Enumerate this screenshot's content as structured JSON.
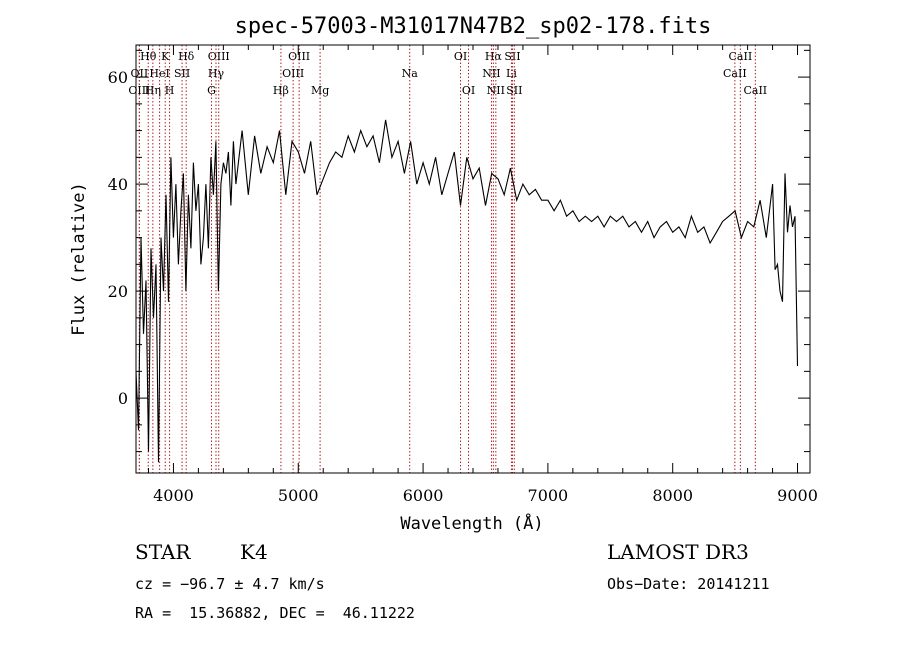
{
  "chart_data": {
    "type": "line",
    "title": "spec-57003-M31017N47B2_sp02-178.fits",
    "xlabel": "Wavelength (Å)",
    "ylabel": "Flux (relative)",
    "xlim": [
      3700,
      9100
    ],
    "ylim": [
      -14,
      66
    ],
    "xticks": [
      4000,
      5000,
      6000,
      7000,
      8000,
      9000
    ],
    "yticks": [
      0,
      20,
      40,
      60
    ],
    "series": [
      {
        "name": "flux",
        "x": [
          3700,
          3720,
          3740,
          3760,
          3780,
          3800,
          3820,
          3840,
          3860,
          3880,
          3900,
          3920,
          3940,
          3960,
          3980,
          4000,
          4020,
          4040,
          4060,
          4080,
          4100,
          4120,
          4140,
          4160,
          4180,
          4200,
          4220,
          4240,
          4260,
          4280,
          4300,
          4320,
          4340,
          4360,
          4380,
          4400,
          4420,
          4440,
          4460,
          4480,
          4500,
          4550,
          4600,
          4650,
          4700,
          4750,
          4800,
          4850,
          4900,
          4950,
          5000,
          5050,
          5100,
          5150,
          5200,
          5250,
          5300,
          5350,
          5400,
          5450,
          5500,
          5550,
          5600,
          5650,
          5700,
          5750,
          5800,
          5850,
          5900,
          5950,
          6000,
          6050,
          6100,
          6150,
          6200,
          6250,
          6300,
          6350,
          6400,
          6450,
          6500,
          6550,
          6600,
          6650,
          6700,
          6750,
          6800,
          6850,
          6900,
          6950,
          7000,
          7050,
          7100,
          7150,
          7200,
          7250,
          7300,
          7350,
          7400,
          7450,
          7500,
          7550,
          7600,
          7650,
          7700,
          7750,
          7800,
          7850,
          7900,
          7950,
          8000,
          8050,
          8100,
          8150,
          8200,
          8250,
          8300,
          8350,
          8400,
          8450,
          8500,
          8550,
          8600,
          8650,
          8700,
          8750,
          8800,
          8820,
          8840,
          8860,
          8880,
          8900,
          8920,
          8940,
          8960,
          8980,
          9000
        ],
        "y": [
          5,
          -6,
          30,
          12,
          22,
          -10,
          28,
          15,
          25,
          -12,
          30,
          20,
          38,
          18,
          45,
          30,
          40,
          25,
          35,
          42,
          20,
          38,
          28,
          44,
          35,
          40,
          25,
          30,
          40,
          28,
          45,
          38,
          48,
          20,
          40,
          44,
          42,
          46,
          36,
          48,
          40,
          50,
          38,
          49,
          42,
          47,
          44,
          50,
          38,
          48,
          46,
          42,
          48,
          38,
          41,
          44,
          46,
          45,
          49,
          46,
          50,
          47,
          49,
          44,
          52,
          45,
          48,
          42,
          48,
          40,
          44,
          40,
          45,
          38,
          42,
          46,
          36,
          45,
          41,
          43,
          36,
          42,
          41,
          38,
          43,
          37,
          40,
          38,
          39,
          37,
          37,
          35,
          37,
          34,
          35,
          33,
          34,
          33,
          34,
          32,
          34,
          33,
          34,
          32,
          33,
          31,
          33,
          30,
          32,
          33,
          31,
          32,
          30,
          34,
          31,
          32,
          29,
          31,
          33,
          34,
          35,
          30,
          33,
          32,
          37,
          30,
          40,
          24,
          25,
          20,
          18,
          42,
          31,
          36,
          32,
          34,
          6
        ]
      }
    ],
    "lines": [
      {
        "label": "Hθ",
        "wave": 3798,
        "row": 0
      },
      {
        "label": "OII",
        "wave": 3727,
        "row": 1
      },
      {
        "label": "OIII",
        "wave": 3727,
        "row": 2
      },
      {
        "label": "K",
        "wave": 3934,
        "row": 0
      },
      {
        "label": "HeI",
        "wave": 3889,
        "row": 1
      },
      {
        "label": "Hη",
        "wave": 3835,
        "row": 2
      },
      {
        "label": "SII",
        "wave": 4069,
        "row": 1
      },
      {
        "label": "H",
        "wave": 3969,
        "row": 2
      },
      {
        "label": "Hδ",
        "wave": 4102,
        "row": 0
      },
      {
        "label": "OIII",
        "wave": 4363,
        "row": 0
      },
      {
        "label": "Hγ",
        "wave": 4341,
        "row": 1
      },
      {
        "label": "G",
        "wave": 4305,
        "row": 2
      },
      {
        "label": "Hβ",
        "wave": 4861,
        "row": 2
      },
      {
        "label": "OIII",
        "wave": 5007,
        "row": 0
      },
      {
        "label": "OIII",
        "wave": 4959,
        "row": 1
      },
      {
        "label": "Mg",
        "wave": 5175,
        "row": 2
      },
      {
        "label": "Na",
        "wave": 5893,
        "row": 1
      },
      {
        "label": "OI",
        "wave": 6300,
        "row": 0
      },
      {
        "label": "OI",
        "wave": 6364,
        "row": 2
      },
      {
        "label": "Hα",
        "wave": 6563,
        "row": 0
      },
      {
        "label": "SII",
        "wave": 6716,
        "row": 0
      },
      {
        "label": "NII",
        "wave": 6548,
        "row": 1
      },
      {
        "label": "Li",
        "wave": 6708,
        "row": 1
      },
      {
        "label": "NII",
        "wave": 6583,
        "row": 2
      },
      {
        "label": "SII",
        "wave": 6731,
        "row": 2
      },
      {
        "label": "CaII",
        "wave": 8542,
        "row": 0
      },
      {
        "label": "CaII",
        "wave": 8498,
        "row": 1
      },
      {
        "label": "CaII",
        "wave": 8662,
        "row": 2
      }
    ],
    "line_color": "#b22222"
  },
  "footer": {
    "object_class": "STAR",
    "subclass": "K4",
    "survey": "LAMOST DR3",
    "cz": "cz = −96.7 ± 4.7 km/s",
    "obs_date": "Obs−Date: 20141211",
    "coords": "RA =  15.36882, DEC =  46.11222"
  }
}
